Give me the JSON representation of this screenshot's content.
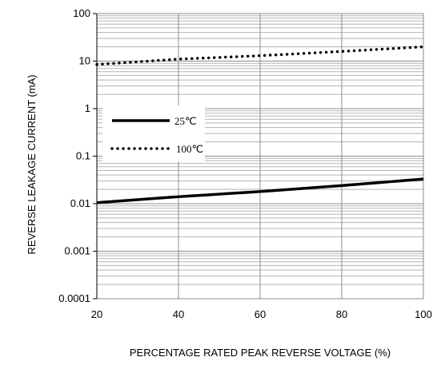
{
  "chart_data": {
    "type": "line",
    "xlabel": "PERCENTAGE RATED PEAK REVERSE VOLTAGE (%)",
    "ylabel": "REVERSE LEAKAGE CURRENT (mA)",
    "xlim": [
      20,
      100
    ],
    "ylim": [
      0.0001,
      100
    ],
    "y_scale": "log",
    "x_ticks": [
      20,
      40,
      60,
      80,
      100
    ],
    "x_tick_labels": [
      "20",
      "40",
      "60",
      "80",
      "100"
    ],
    "y_ticks": [
      0.0001,
      0.001,
      0.01,
      0.1,
      1,
      10,
      100
    ],
    "y_tick_labels": [
      "0.0001",
      "0.001",
      "0.01",
      "0.1",
      "1",
      "10",
      "100"
    ],
    "grid": true,
    "legend_position": "left-middle",
    "series": [
      {
        "name": "25℃",
        "style": "solid",
        "color": "#000000",
        "x": [
          20,
          40,
          60,
          80,
          100
        ],
        "y": [
          0.0105,
          0.014,
          0.018,
          0.024,
          0.033
        ]
      },
      {
        "name": "100℃",
        "style": "dotted",
        "color": "#000000",
        "x": [
          20,
          40,
          60,
          80,
          100
        ],
        "y": [
          8.5,
          11,
          13,
          16,
          20
        ]
      }
    ]
  }
}
